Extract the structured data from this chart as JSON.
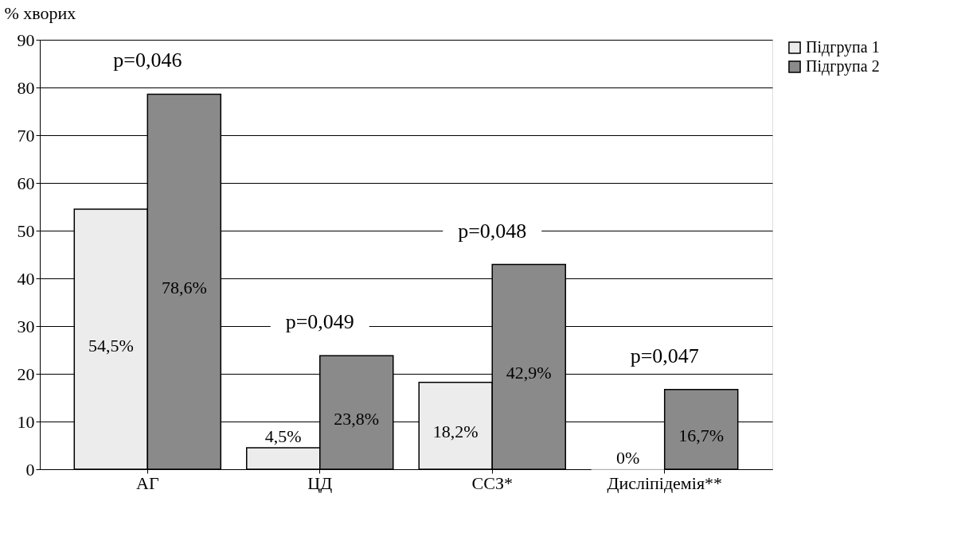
{
  "chart_data": {
    "type": "bar",
    "ylabel": "% хворих",
    "categories": [
      "АГ",
      "ЦД",
      "ССЗ*",
      "Дисліпідемія**"
    ],
    "series": [
      {
        "name": "Підгрупа 1",
        "color": "#ececec",
        "values": [
          54.5,
          4.5,
          18.2,
          0
        ],
        "value_labels": [
          "54,5%",
          "4,5%",
          "18,2%",
          "0%"
        ]
      },
      {
        "name": "Підгрупа 2",
        "color": "#8a8a8a",
        "values": [
          78.6,
          23.8,
          42.9,
          16.7
        ],
        "value_labels": [
          "78,6%",
          "23,8%",
          "42,9%",
          "16,7%"
        ]
      }
    ],
    "ylim": [
      0,
      90
    ],
    "yticks": [
      0,
      10,
      20,
      30,
      40,
      50,
      60,
      70,
      80,
      90
    ],
    "grid": "y",
    "legend": "right",
    "annotations": [
      "p=0,046",
      "p=0,049",
      "p=0,048",
      "p=0,047"
    ]
  }
}
